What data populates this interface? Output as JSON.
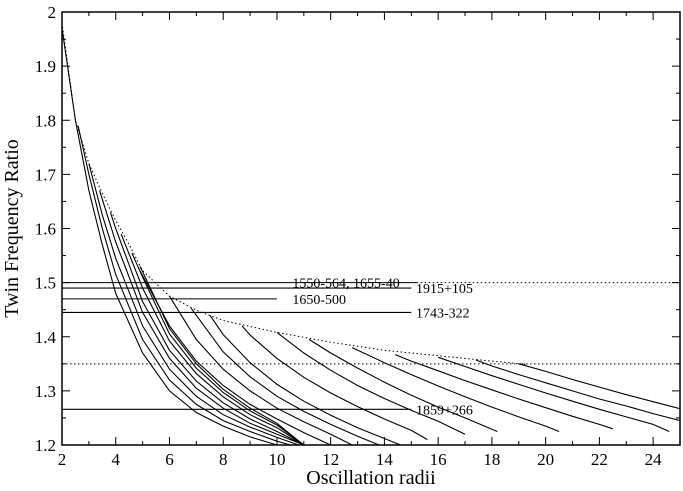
{
  "chart_data": {
    "type": "line",
    "xlabel": "Oscillation radii",
    "ylabel": "Twin Frequency Ratio",
    "xlim": [
      2,
      25
    ],
    "ylim": [
      1.2,
      2.0
    ],
    "x_ticks": [
      2,
      4,
      6,
      8,
      10,
      12,
      14,
      16,
      18,
      20,
      22,
      24
    ],
    "y_ticks": [
      1.2,
      1.3,
      1.4,
      1.5,
      1.6,
      1.7,
      1.8,
      1.9,
      2.0
    ],
    "x_tick_labels": [
      "2",
      "4",
      "6",
      "8",
      "10",
      "12",
      "14",
      "16",
      "18",
      "20",
      "22",
      "24"
    ],
    "y_tick_labels": [
      "1.2",
      "1.3",
      "1.4",
      "1.5",
      "1.6",
      "1.7",
      "1.8",
      "1.9",
      "2"
    ],
    "grid": false,
    "envelope": [
      {
        "x": 2.0,
        "y": 1.98
      },
      {
        "x": 2.5,
        "y": 1.8
      },
      {
        "x": 3.0,
        "y": 1.72
      },
      {
        "x": 3.5,
        "y": 1.665
      },
      {
        "x": 4.0,
        "y": 1.615
      },
      {
        "x": 4.5,
        "y": 1.57
      },
      {
        "x": 5.0,
        "y": 1.522
      },
      {
        "x": 6.0,
        "y": 1.475
      },
      {
        "x": 7.0,
        "y": 1.449
      },
      {
        "x": 8.0,
        "y": 1.43
      },
      {
        "x": 10.0,
        "y": 1.408
      },
      {
        "x": 12.0,
        "y": 1.39
      },
      {
        "x": 14.0,
        "y": 1.375
      },
      {
        "x": 16.0,
        "y": 1.365
      },
      {
        "x": 18.0,
        "y": 1.355
      },
      {
        "x": 19.3,
        "y": 1.349
      }
    ],
    "reference_lines": [
      {
        "y": 1.5,
        "style": "dotted",
        "x_from": 15.2,
        "x_to": 25
      },
      {
        "y": 1.35,
        "style": "dotted",
        "x_from": 2,
        "x_to": 25
      }
    ],
    "observed_ratios": [
      {
        "label": "1550-564, 1655-40",
        "y": 1.5,
        "x_from": 2,
        "x_to": 15.2,
        "label_x": 10.5
      },
      {
        "label": "1915+105",
        "y": 1.49,
        "x_from": 2,
        "x_to": 15.0,
        "label_x": 15.1
      },
      {
        "label": "1650-500",
        "y": 1.47,
        "x_from": 2,
        "x_to": 10.0,
        "label_x": 10.5
      },
      {
        "label": "1743-322",
        "y": 1.445,
        "x_from": 2,
        "x_to": 15.0,
        "label_x": 15.1
      },
      {
        "label": "1859+266",
        "y": 1.266,
        "x_from": 2,
        "x_to": 15.0,
        "label_x": 15.1
      }
    ],
    "steep_curves": [
      {
        "x": [
          2.0,
          2.5,
          3.0,
          3.5,
          4.0,
          5.0,
          6.0,
          7.0,
          8.0,
          9.0,
          10.0
        ],
        "y": [
          1.97,
          1.8,
          1.67,
          1.57,
          1.48,
          1.37,
          1.3,
          1.26,
          1.235,
          1.215,
          1.2
        ]
      },
      {
        "x": [
          2.6,
          3.0,
          3.5,
          4.0,
          5.0,
          6.0,
          7.0,
          8.0,
          9.0,
          10.0,
          10.5
        ],
        "y": [
          1.79,
          1.7,
          1.6,
          1.515,
          1.395,
          1.32,
          1.275,
          1.245,
          1.225,
          1.207,
          1.2
        ]
      },
      {
        "x": [
          3.0,
          3.5,
          4.0,
          5.0,
          6.0,
          7.0,
          8.0,
          9.0,
          10.0,
          10.8
        ],
        "y": [
          1.72,
          1.625,
          1.545,
          1.42,
          1.34,
          1.29,
          1.256,
          1.233,
          1.214,
          1.2
        ]
      },
      {
        "x": [
          3.4,
          4.0,
          5.0,
          6.0,
          7.0,
          8.0,
          9.0,
          10.0,
          11.0
        ],
        "y": [
          1.67,
          1.575,
          1.445,
          1.36,
          1.305,
          1.268,
          1.24,
          1.22,
          1.2
        ]
      },
      {
        "x": [
          3.8,
          4.0,
          5.0,
          6.0,
          7.0,
          8.0,
          9.0,
          10.0,
          11.0
        ],
        "y": [
          1.63,
          1.6,
          1.465,
          1.375,
          1.318,
          1.278,
          1.248,
          1.225,
          1.2
        ]
      },
      {
        "x": [
          4.2,
          5.0,
          6.0,
          7.0,
          8.0,
          9.0,
          10.0,
          11.0
        ],
        "y": [
          1.59,
          1.49,
          1.392,
          1.332,
          1.289,
          1.256,
          1.232,
          1.2
        ]
      },
      {
        "x": [
          4.6,
          5.0,
          6.0,
          7.0,
          8.0,
          9.0,
          10.0,
          11.0
        ],
        "y": [
          1.555,
          1.51,
          1.405,
          1.342,
          1.297,
          1.263,
          1.237,
          1.2
        ]
      },
      {
        "x": [
          4.9,
          5.0,
          6.0,
          7.0,
          8.0,
          9.0,
          10.0,
          11.0
        ],
        "y": [
          1.53,
          1.52,
          1.415,
          1.35,
          1.303,
          1.268,
          1.24,
          1.2
        ]
      }
    ],
    "branch_curves": [
      {
        "x": [
          4.9,
          6.0,
          7.0,
          8.0,
          9.0,
          10.0,
          11.0,
          12.0
        ],
        "y": [
          1.522,
          1.42,
          1.355,
          1.31,
          1.275,
          1.248,
          1.223,
          1.2
        ]
      },
      {
        "x": [
          6.0,
          7.0,
          8.0,
          9.0,
          10.0,
          11.0,
          12.0,
          12.8
        ],
        "y": [
          1.475,
          1.395,
          1.34,
          1.3,
          1.268,
          1.243,
          1.22,
          1.2
        ]
      },
      {
        "x": [
          6.8,
          8.0,
          9.0,
          10.0,
          11.0,
          12.0,
          13.0,
          13.8
        ],
        "y": [
          1.453,
          1.372,
          1.326,
          1.29,
          1.262,
          1.238,
          1.216,
          1.2
        ]
      },
      {
        "x": [
          7.5,
          8.0,
          9.0,
          10.0,
          11.0,
          12.0,
          13.0,
          14.0,
          14.6
        ],
        "y": [
          1.44,
          1.404,
          1.352,
          1.312,
          1.281,
          1.255,
          1.232,
          1.212,
          1.2
        ]
      },
      {
        "x": [
          8.7,
          9.0,
          10.0,
          11.0,
          12.0,
          13.0,
          14.0,
          15.0,
          15.6
        ],
        "y": [
          1.42,
          1.403,
          1.36,
          1.325,
          1.296,
          1.271,
          1.248,
          1.227,
          1.21
        ]
      },
      {
        "x": [
          10.0,
          11.0,
          12.0,
          13.0,
          14.0,
          15.0,
          16.0,
          17.0
        ],
        "y": [
          1.408,
          1.37,
          1.338,
          1.31,
          1.286,
          1.264,
          1.244,
          1.22
        ]
      },
      {
        "x": [
          11.2,
          12.0,
          13.0,
          14.0,
          15.0,
          16.0,
          17.0,
          18.2
        ],
        "y": [
          1.395,
          1.37,
          1.342,
          1.316,
          1.292,
          1.27,
          1.25,
          1.225
        ]
      },
      {
        "x": [
          12.8,
          14.0,
          15.0,
          16.0,
          17.0,
          18.0,
          19.0,
          20.0,
          20.5
        ],
        "y": [
          1.38,
          1.352,
          1.33,
          1.309,
          1.289,
          1.27,
          1.252,
          1.235,
          1.225
        ]
      },
      {
        "x": [
          14.4,
          15.0,
          16.0,
          17.0,
          18.0,
          19.0,
          20.0,
          21.0,
          22.0,
          22.5
        ],
        "y": [
          1.367,
          1.355,
          1.337,
          1.319,
          1.302,
          1.285,
          1.269,
          1.253,
          1.238,
          1.23
        ]
      },
      {
        "x": [
          16.0,
          17.0,
          18.0,
          19.0,
          20.0,
          21.0,
          22.0,
          23.0,
          24.0,
          24.6
        ],
        "y": [
          1.362,
          1.345,
          1.328,
          1.312,
          1.296,
          1.281,
          1.266,
          1.252,
          1.238,
          1.225
        ]
      },
      {
        "x": [
          17.4,
          18.0,
          19.0,
          20.0,
          21.0,
          22.0,
          23.0,
          24.0,
          25.0
        ],
        "y": [
          1.357,
          1.346,
          1.33,
          1.315,
          1.3,
          1.285,
          1.272,
          1.258,
          1.245
        ]
      },
      {
        "x": [
          19.0,
          20.0,
          21.0,
          22.0,
          23.0,
          24.0,
          25.0
        ],
        "y": [
          1.35,
          1.336,
          1.321,
          1.307,
          1.293,
          1.28,
          1.267
        ]
      }
    ]
  }
}
